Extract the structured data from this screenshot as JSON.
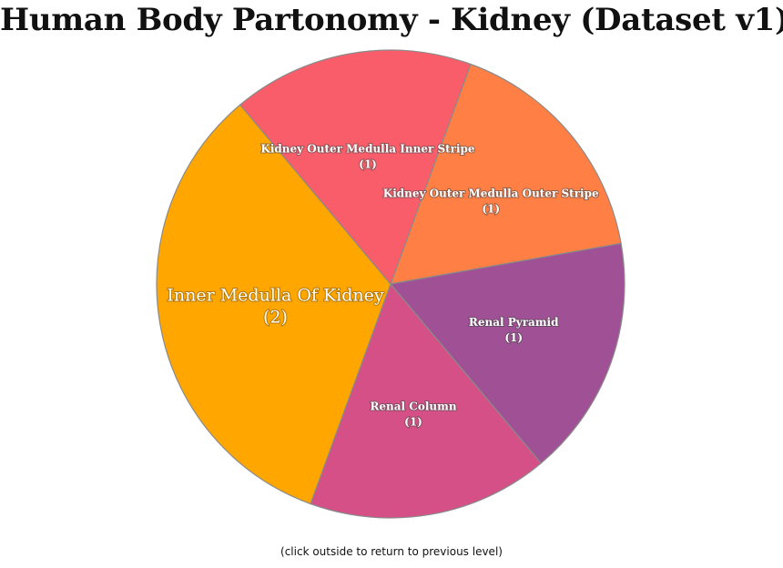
{
  "chart_data": {
    "type": "pie",
    "title": "Human Body Partonomy - Kidney (Dataset v1)",
    "slices": [
      {
        "label": "Kidney Outer Medulla Outer Stripe",
        "value": 1,
        "color": "#FF7F45"
      },
      {
        "label": "Renal Pyramid",
        "value": 1,
        "color": "#A05195"
      },
      {
        "label": "Renal Column",
        "value": 1,
        "color": "#D45087"
      },
      {
        "label": "Inner Medulla Of Kidney",
        "value": 2,
        "color": "#FFA600"
      },
      {
        "label": "Kidney Outer Medulla Inner Stripe",
        "value": 1,
        "color": "#F95D6A"
      }
    ],
    "legend": "none"
  },
  "footer": {
    "hint": "(click outside to return to previous level)"
  }
}
